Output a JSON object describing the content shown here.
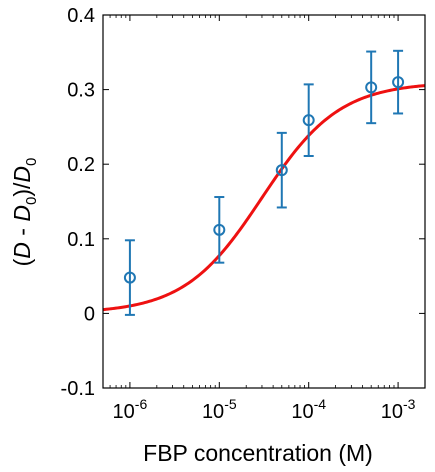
{
  "chart_data": {
    "type": "scatter",
    "xlabel": "FBP concentration (M)",
    "ylabel": {
      "prefix": "(",
      "d1": "D",
      "minus": " - ",
      "d2": "D",
      "sub1": "0",
      "mid": ")/",
      "d3": "D",
      "sub2": "0"
    },
    "x_scale": "log",
    "xlim": [
      5e-07,
      0.002
    ],
    "ylim": [
      -0.1,
      0.4
    ],
    "x_ticks": [
      1e-06,
      1e-05,
      0.0001,
      0.001
    ],
    "x_tick_labels": [
      {
        "base": "10",
        "exp": "-6"
      },
      {
        "base": "10",
        "exp": "-5"
      },
      {
        "base": "10",
        "exp": "-4"
      },
      {
        "base": "10",
        "exp": "-3"
      }
    ],
    "y_ticks": [
      -0.1,
      0,
      0.1,
      0.2,
      0.3,
      0.4
    ],
    "y_tick_labels": [
      "-0.1",
      "0",
      "0.1",
      "0.2",
      "0.3",
      "0.4"
    ],
    "grid": false,
    "series": [
      {
        "kind": "points_with_error_bars",
        "color": "#1f77b4",
        "points": [
          {
            "x": 1e-06,
            "y": 0.048,
            "err": 0.05
          },
          {
            "x": 1e-05,
            "y": 0.112,
            "err": 0.044
          },
          {
            "x": 5e-05,
            "y": 0.192,
            "err": 0.05
          },
          {
            "x": 0.0001,
            "y": 0.259,
            "err": 0.048
          },
          {
            "x": 0.0005,
            "y": 0.303,
            "err": 0.048
          },
          {
            "x": 0.001,
            "y": 0.31,
            "err": 0.042
          }
        ]
      },
      {
        "kind": "fit_curve",
        "color": "#ee1111",
        "baseline": 0.0,
        "top": 0.31,
        "ec50": 3e-05,
        "hill": 1.0
      }
    ]
  }
}
